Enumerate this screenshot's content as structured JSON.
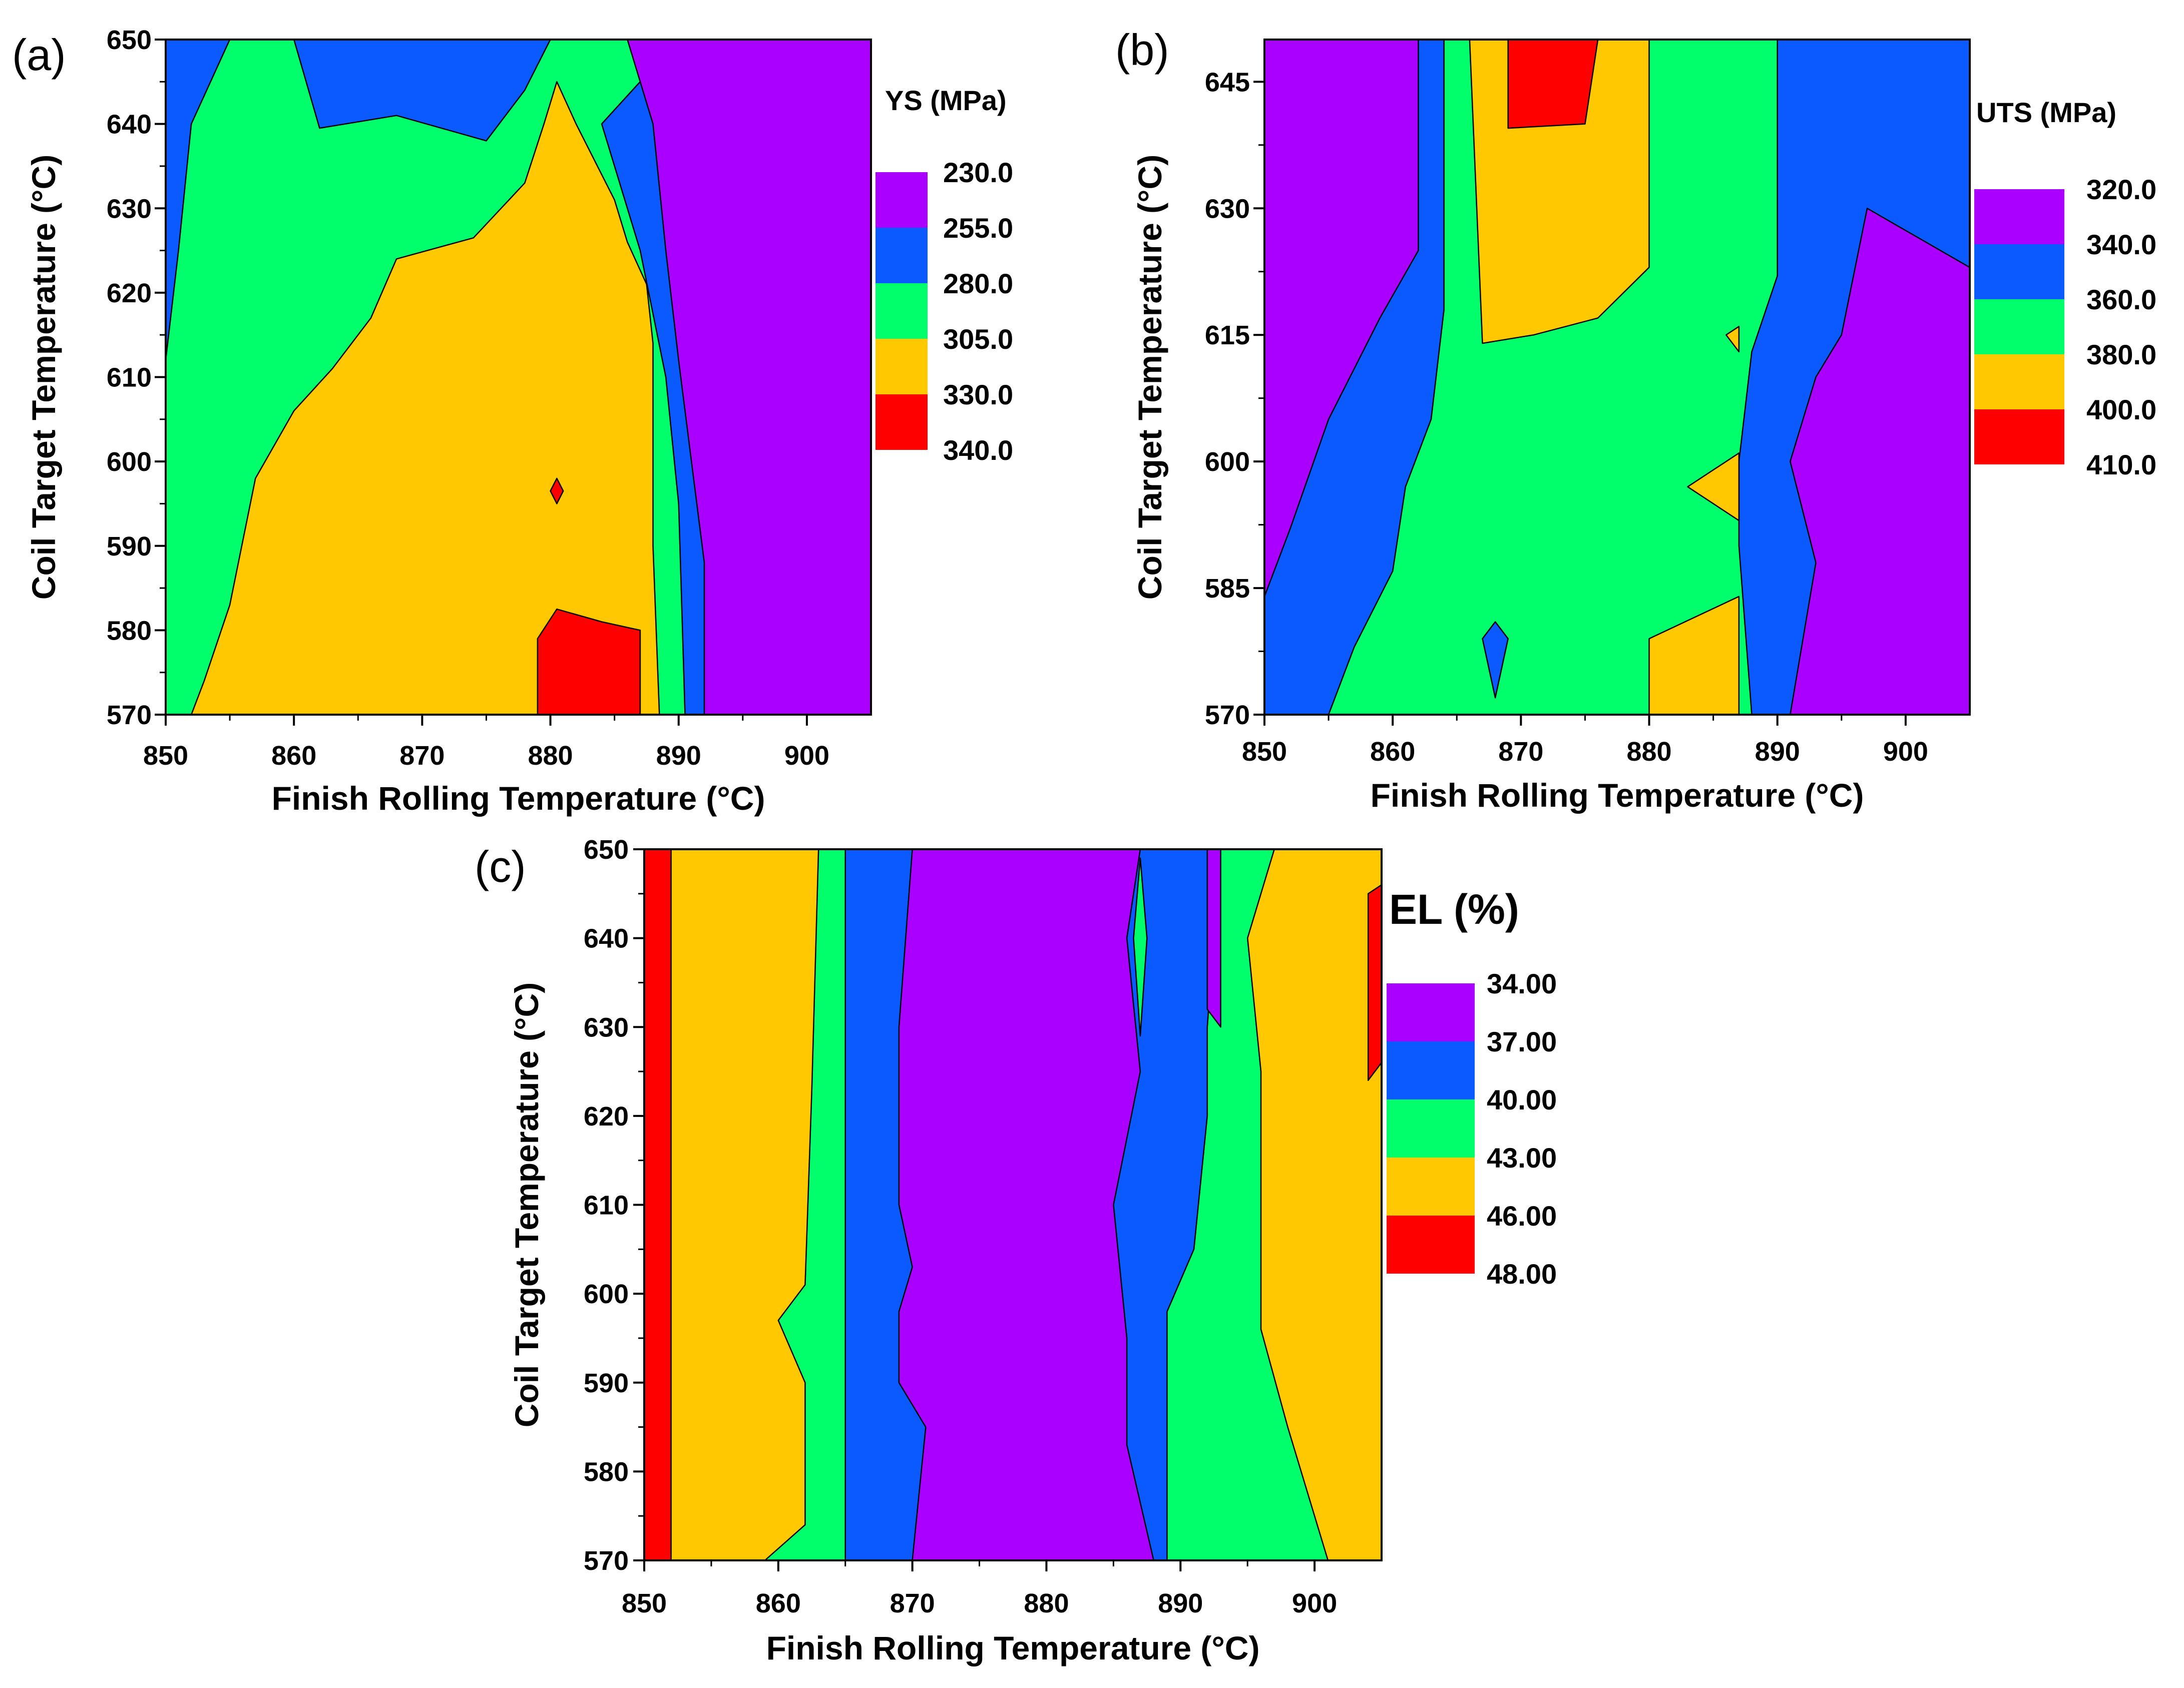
{
  "colors": {
    "purple": "#AA00FF",
    "blue": "#0A5AFF",
    "green": "#00FF6A",
    "yellow": "#FFC800",
    "red": "#FF0000"
  },
  "chart_data": [
    {
      "type": "heatmap",
      "panel_label": "(a)",
      "xlabel": "Finish Rolling Temperature (°C)",
      "ylabel": "Coil Target Temperature (°C)",
      "xlim": [
        850,
        905
      ],
      "ylim": [
        570,
        650
      ],
      "x_ticks": [
        850,
        860,
        870,
        880,
        890,
        900
      ],
      "y_ticks": [
        570,
        580,
        590,
        600,
        610,
        620,
        630,
        640,
        650
      ],
      "legend_title": "YS (MPa)",
      "levels": [
        "230.0",
        "255.0",
        "280.0",
        "305.0",
        "330.0",
        "340.0"
      ],
      "level_colors": [
        "purple",
        "blue",
        "green",
        "yellow",
        "red"
      ],
      "regions": [
        {
          "color": "blue",
          "points": [
            [
              850,
              650
            ],
            [
              905,
              650
            ],
            [
              905,
              570
            ],
            [
              850,
              570
            ]
          ]
        },
        {
          "color": "green",
          "points": [
            [
              850,
              570
            ],
            [
              850,
              612
            ],
            [
              851,
              625
            ],
            [
              852,
              640
            ],
            [
              855,
              650
            ],
            [
              890,
              650
            ],
            [
              884,
              640
            ],
            [
              887,
              625
            ],
            [
              889,
              610
            ],
            [
              890,
              595
            ],
            [
              890.5,
              570
            ]
          ]
        },
        {
          "color": "purple",
          "points": [
            [
              873,
              650
            ],
            [
              877,
              650
            ],
            [
              876,
              648
            ]
          ]
        },
        {
          "color": "blue",
          "points": [
            [
              862,
              639.5
            ],
            [
              868,
              641
            ],
            [
              875,
              638
            ],
            [
              878,
              644
            ],
            [
              880,
              650
            ],
            [
              860,
              650
            ]
          ]
        },
        {
          "color": "purple",
          "points": [
            [
              875,
              650
            ],
            [
              905,
              650
            ],
            [
              905,
              570
            ],
            [
              892,
              570
            ],
            [
              892,
              588
            ],
            [
              891,
              600
            ],
            [
              890,
              612
            ],
            [
              889,
              625
            ],
            [
              888,
              640
            ],
            [
              886,
              650
            ]
          ]
        },
        {
          "color": "yellow",
          "points": [
            [
              852,
              570
            ],
            [
              853,
              574
            ],
            [
              855,
              583
            ],
            [
              857,
              598
            ],
            [
              860,
              606
            ],
            [
              863,
              611
            ],
            [
              866,
              617
            ],
            [
              868,
              624
            ],
            [
              874,
              626.5
            ],
            [
              878,
              633
            ],
            [
              879.5,
              640
            ],
            [
              880.5,
              645
            ],
            [
              882,
              640
            ],
            [
              885,
              631
            ],
            [
              886,
              626
            ],
            [
              887.5,
              621
            ],
            [
              888,
              614
            ],
            [
              888,
              605
            ],
            [
              888,
              590
            ],
            [
              888.5,
              570
            ]
          ]
        },
        {
          "color": "red",
          "points": [
            [
              879,
              570
            ],
            [
              879,
              579
            ],
            [
              880.5,
              582.5
            ],
            [
              884,
              581
            ],
            [
              887,
              580
            ],
            [
              887,
              570
            ]
          ]
        },
        {
          "color": "red",
          "points": [
            [
              880.5,
              598
            ],
            [
              881,
              596.5
            ],
            [
              880.5,
              595
            ],
            [
              880,
              596.5
            ]
          ]
        }
      ]
    },
    {
      "type": "heatmap",
      "panel_label": "(b)",
      "xlabel": "Finish Rolling Temperature (°C)",
      "ylabel": "Coil Target Temperature (°C)",
      "xlim": [
        850,
        905
      ],
      "ylim": [
        570,
        650
      ],
      "x_ticks": [
        850,
        860,
        870,
        880,
        890,
        900
      ],
      "y_ticks": [
        570,
        585,
        600,
        615,
        630,
        645
      ],
      "legend_title": "UTS (MPa)",
      "levels": [
        "320.0",
        "340.0",
        "360.0",
        "380.0",
        "400.0",
        "410.0"
      ],
      "level_colors": [
        "purple",
        "blue",
        "green",
        "yellow",
        "red"
      ],
      "regions": [
        {
          "color": "blue",
          "points": [
            [
              850,
              570
            ],
            [
              905,
              570
            ],
            [
              905,
              650
            ],
            [
              850,
              650
            ]
          ]
        },
        {
          "color": "purple",
          "points": [
            [
              850,
              570
            ],
            [
              850,
              650
            ],
            [
              862,
              650
            ],
            [
              862,
              625
            ],
            [
              859,
              617
            ],
            [
              855,
              605
            ],
            [
              852,
              592
            ],
            [
              850,
              584
            ]
          ]
        },
        {
          "color": "green",
          "points": [
            [
              855,
              570
            ],
            [
              857,
              578
            ],
            [
              860,
              587
            ],
            [
              861,
              597
            ],
            [
              863,
              605
            ],
            [
              864,
              618
            ],
            [
              864,
              650
            ],
            [
              890,
              650
            ],
            [
              890,
              622
            ],
            [
              888,
              613
            ],
            [
              887,
              600
            ],
            [
              887,
              590
            ],
            [
              888,
              570
            ]
          ]
        },
        {
          "color": "purple",
          "points": [
            [
              891,
              570
            ],
            [
              893,
              588
            ],
            [
              891,
              600
            ],
            [
              893,
              610
            ],
            [
              895,
              615
            ],
            [
              897,
              630
            ],
            [
              905,
              623
            ],
            [
              905,
              570
            ]
          ]
        },
        {
          "color": "yellow",
          "points": [
            [
              866,
              650
            ],
            [
              880,
              650
            ],
            [
              880,
              623
            ],
            [
              876,
              617
            ],
            [
              871,
              615
            ],
            [
              867,
              614
            ]
          ]
        },
        {
          "color": "red",
          "points": [
            [
              869,
              650
            ],
            [
              876,
              650
            ],
            [
              875,
              640
            ],
            [
              869,
              639.5
            ]
          ]
        },
        {
          "color": "yellow",
          "points": [
            [
              880,
              570
            ],
            [
              880,
              579
            ],
            [
              887,
              584
            ],
            [
              887,
              570
            ]
          ]
        },
        {
          "color": "yellow",
          "points": [
            [
              883,
              597
            ],
            [
              887,
              601
            ],
            [
              887,
              593
            ]
          ]
        },
        {
          "color": "yellow",
          "points": [
            [
              886,
              615
            ],
            [
              887,
              616
            ],
            [
              887,
              613
            ]
          ]
        },
        {
          "color": "blue",
          "points": [
            [
              868,
              572
            ],
            [
              869,
              579
            ],
            [
              868,
              581
            ],
            [
              867,
              579
            ]
          ]
        }
      ]
    },
    {
      "type": "heatmap",
      "panel_label": "(c)",
      "xlabel": "Finish Rolling Temperature (°C)",
      "ylabel": "Coil Target Temperature (°C)",
      "xlim": [
        850,
        905
      ],
      "ylim": [
        570,
        650
      ],
      "x_ticks": [
        850,
        860,
        870,
        880,
        890,
        900
      ],
      "y_ticks": [
        570,
        580,
        590,
        600,
        610,
        620,
        630,
        640,
        650
      ],
      "legend_title": "EL (%)",
      "levels": [
        "34.00",
        "37.00",
        "40.00",
        "43.00",
        "46.00",
        "48.00"
      ],
      "level_colors": [
        "purple",
        "blue",
        "green",
        "yellow",
        "red"
      ],
      "regions": [
        {
          "color": "yellow",
          "points": [
            [
              850,
              570
            ],
            [
              905,
              570
            ],
            [
              905,
              650
            ],
            [
              850,
              650
            ]
          ]
        },
        {
          "color": "red",
          "points": [
            [
              850,
              570
            ],
            [
              852,
              570
            ],
            [
              852,
              650
            ],
            [
              850,
              650
            ]
          ]
        },
        {
          "color": "green",
          "points": [
            [
              859,
              570
            ],
            [
              862,
              574
            ],
            [
              862,
              590
            ],
            [
              860,
              597
            ],
            [
              862,
              601
            ],
            [
              862.5,
              623
            ],
            [
              863,
              650
            ],
            [
              897,
              650
            ],
            [
              895,
              640
            ],
            [
              896,
              625
            ],
            [
              896,
              620
            ],
            [
              896,
              596
            ],
            [
              898,
              585
            ],
            [
              901,
              570
            ]
          ]
        },
        {
          "color": "blue",
          "points": [
            [
              865,
              570
            ],
            [
              865,
              598
            ],
            [
              865,
              610
            ],
            [
              865,
              650
            ],
            [
              893,
              650
            ],
            [
              892,
              630
            ],
            [
              892,
              620
            ],
            [
              891,
              605
            ],
            [
              889,
              598
            ],
            [
              889,
              570
            ]
          ]
        },
        {
          "color": "purple",
          "points": [
            [
              870,
              570
            ],
            [
              871,
              585
            ],
            [
              869,
              590
            ],
            [
              869,
              598
            ],
            [
              870,
              603
            ],
            [
              869,
              610
            ],
            [
              869,
              630
            ],
            [
              870,
              650
            ],
            [
              887,
              650
            ],
            [
              886,
              640
            ],
            [
              887,
              625
            ],
            [
              885,
              610
            ],
            [
              886,
              595
            ],
            [
              886,
              583
            ],
            [
              888,
              570
            ]
          ]
        },
        {
          "color": "purple",
          "points": [
            [
              892,
              650
            ],
            [
              893,
              650
            ],
            [
              893,
              630
            ],
            [
              892,
              632
            ]
          ]
        },
        {
          "color": "green",
          "points": [
            [
              887,
              649
            ],
            [
              887.5,
              640
            ],
            [
              887,
              629
            ],
            [
              886.5,
              640
            ]
          ]
        },
        {
          "color": "red",
          "points": [
            [
              904,
              624
            ],
            [
              905,
              626
            ],
            [
              905,
              646
            ],
            [
              904,
              645
            ]
          ]
        }
      ]
    }
  ]
}
